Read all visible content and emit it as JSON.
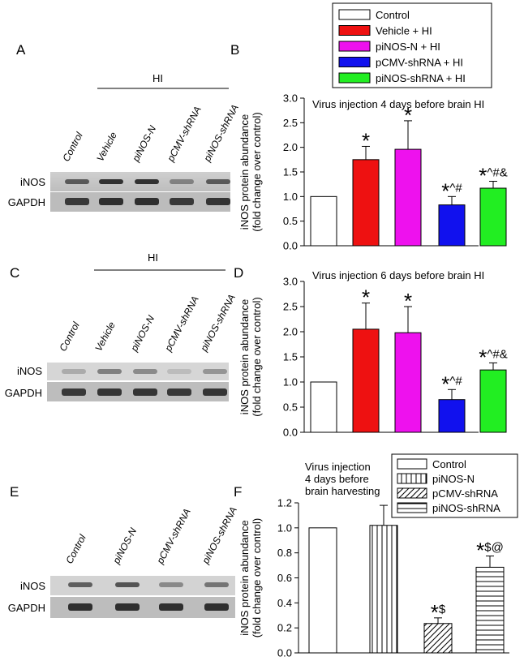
{
  "panels": {
    "A": "A",
    "B": "B",
    "C": "C",
    "D": "D",
    "E": "E",
    "F": "F"
  },
  "hi_label": "HI",
  "blot_rows": [
    "iNOS",
    "GAPDH"
  ],
  "lanes_5": [
    "Control",
    "Vehicle",
    "piNOS-N",
    "pCMV-shRNA",
    "piNOS-shRNA"
  ],
  "lanes_4": [
    "Control",
    "piNOS-N",
    "pCMV-shRNA",
    "piNOS-shRNA"
  ],
  "legend_top": [
    {
      "label": "Control",
      "color": "#ffffff"
    },
    {
      "label": "Vehicle + HI",
      "color": "#ee1111"
    },
    {
      "label": "piNOS-N + HI",
      "color": "#ee11ee"
    },
    {
      "label": "pCMV-shRNA + HI",
      "color": "#1111ee"
    },
    {
      "label": "piNOS-shRNA + HI",
      "color": "#22ee22"
    }
  ],
  "legend_f": [
    {
      "label": "Control",
      "pattern": "none"
    },
    {
      "label": "piNOS-N",
      "pattern": "vertical"
    },
    {
      "label": "pCMV-shRNA",
      "pattern": "diagonal"
    },
    {
      "label": "piNOS-shRNA",
      "pattern": "horizontal"
    }
  ],
  "ylabel_line1": "iNOS protein abundance",
  "ylabel_line2": "(fold change over control)",
  "chart_data": [
    {
      "id": "B",
      "type": "bar",
      "title": "Virus injection 4 days before brain HI",
      "categories": [
        "Control",
        "Vehicle + HI",
        "piNOS-N + HI",
        "pCMV-shRNA + HI",
        "piNOS-shRNA + HI"
      ],
      "values": [
        1.0,
        1.75,
        1.96,
        0.83,
        1.17
      ],
      "errors": [
        0,
        0.27,
        0.58,
        0.17,
        0.14
      ],
      "annotations": [
        "",
        "*",
        "*",
        "*^#",
        "*^#&"
      ],
      "ylim": [
        0,
        3.0
      ],
      "yticks": [
        "0.0",
        "0.5",
        "1.0",
        "1.5",
        "2.0",
        "2.5",
        "3.0"
      ]
    },
    {
      "id": "D",
      "type": "bar",
      "title": "Virus injection 6 days before brain HI",
      "categories": [
        "Control",
        "Vehicle + HI",
        "piNOS-N + HI",
        "pCMV-shRNA + HI",
        "piNOS-shRNA + HI"
      ],
      "values": [
        1.0,
        2.05,
        1.98,
        0.65,
        1.24
      ],
      "errors": [
        0,
        0.52,
        0.52,
        0.2,
        0.14
      ],
      "annotations": [
        "",
        "*",
        "*",
        "*^#",
        "*^#&"
      ],
      "ylim": [
        0,
        3.0
      ],
      "yticks": [
        "0.0",
        "0.5",
        "1.0",
        "1.5",
        "2.0",
        "2.5",
        "3.0"
      ]
    },
    {
      "id": "F",
      "type": "bar",
      "title_lines": [
        "Virus injection",
        "4 days before",
        "brain harvesting"
      ],
      "categories": [
        "Control",
        "piNOS-N",
        "pCMV-shRNA",
        "piNOS-shRNA"
      ],
      "values": [
        1.0,
        1.02,
        0.235,
        0.685
      ],
      "errors": [
        0,
        0.16,
        0.045,
        0.09
      ],
      "annotations": [
        "",
        "",
        "*$",
        "*$@"
      ],
      "ylim": [
        0,
        1.2
      ],
      "yticks": [
        "0.0",
        "0.2",
        "0.4",
        "0.6",
        "0.8",
        "1.0",
        "1.2"
      ]
    }
  ]
}
